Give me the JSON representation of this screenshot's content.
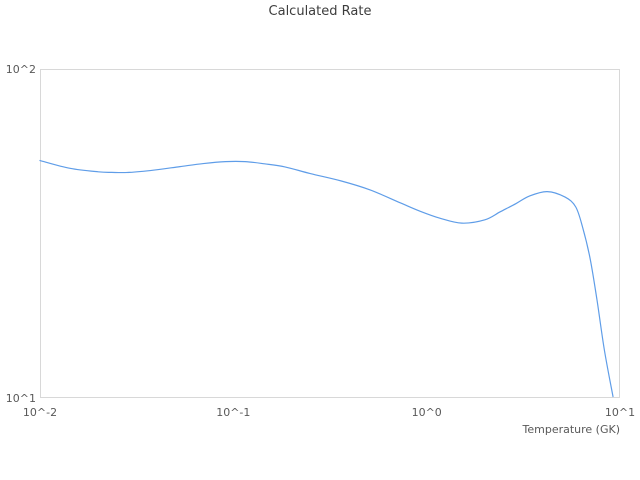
{
  "page": {
    "background": "#ffffff"
  },
  "chart_data": {
    "type": "line",
    "title": "Calculated Rate",
    "xlabel": "Temperature (GK)",
    "ylabel": "",
    "x_scale": "log",
    "y_scale": "log",
    "xlim": [
      0.01,
      10
    ],
    "ylim": [
      10,
      100
    ],
    "x_ticks": [
      0.01,
      0.1,
      1,
      10
    ],
    "x_tick_labels": [
      "10^-2",
      "10^-1",
      "10^0",
      "10^1"
    ],
    "y_ticks": [
      100,
      10
    ],
    "y_tick_labels": [
      "10^2",
      "10^1"
    ],
    "grid": false,
    "legend": false,
    "plot_border_color": "#d8d8d8",
    "series": [
      {
        "name": "Calculated Rate",
        "color": "#5f9de8",
        "points": [
          [
            0.01,
            52.7
          ],
          [
            0.0143,
            49.9
          ],
          [
            0.02,
            48.7
          ],
          [
            0.0235,
            48.5
          ],
          [
            0.029,
            48.5
          ],
          [
            0.039,
            49.3
          ],
          [
            0.053,
            50.5
          ],
          [
            0.07,
            51.6
          ],
          [
            0.091,
            52.3
          ],
          [
            0.115,
            52.3
          ],
          [
            0.145,
            51.5
          ],
          [
            0.185,
            50.4
          ],
          [
            0.25,
            48.1
          ],
          [
            0.36,
            45.7
          ],
          [
            0.51,
            42.9
          ],
          [
            0.73,
            39.2
          ],
          [
            0.92,
            37.0
          ],
          [
            1.17,
            35.2
          ],
          [
            1.52,
            34.0
          ],
          [
            2.0,
            34.8
          ],
          [
            2.4,
            36.8
          ],
          [
            2.9,
            39.0
          ],
          [
            3.4,
            41.1
          ],
          [
            4.2,
            42.4
          ],
          [
            5.2,
            40.8
          ],
          [
            5.9,
            38.1
          ],
          [
            6.4,
            33.1
          ],
          [
            7.0,
            26.6
          ],
          [
            7.6,
            19.9
          ],
          [
            8.3,
            14.0
          ],
          [
            9.2,
            10.1
          ]
        ]
      }
    ]
  }
}
